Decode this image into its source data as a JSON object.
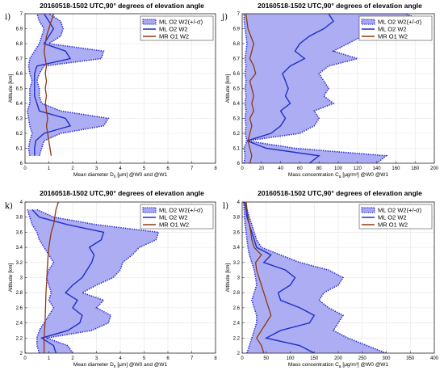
{
  "chart_data": [
    {
      "type": "area",
      "panel_label": "i)",
      "title": "20160518-1502 UTC,90° degrees of elevation angle",
      "xlabel": "Mean diameter D",
      "xlabel_sub": "n",
      "xlabel_rest": " [μm] @W0 and @W1",
      "ylabel": "Altitude [km]",
      "xlim": [
        0,
        8
      ],
      "ylim": [
        6.0,
        7.0
      ],
      "xticks": [
        0,
        1,
        2,
        3,
        4,
        5,
        6,
        7,
        8
      ],
      "yticks": [
        6,
        6.1,
        6.2,
        6.3,
        6.4,
        6.5,
        6.6,
        6.7,
        6.8,
        6.9,
        7
      ],
      "legend_position": "top-right",
      "legend": [
        "ML O2 W2(+/-σ)",
        "ML O2 W2",
        "MR O1 W2"
      ],
      "series": [
        {
          "name": "ML O2 W2(+/-σ)",
          "kind": "band",
          "y": [
            6.05,
            6.1,
            6.15,
            6.2,
            6.25,
            6.3,
            6.35,
            6.4,
            6.45,
            6.5,
            6.55,
            6.6,
            6.65,
            6.7,
            6.75,
            6.8,
            6.85,
            6.9,
            6.95,
            7.0
          ],
          "lower": [
            0.2,
            0.15,
            0.2,
            0.3,
            0.2,
            0.15,
            0.1,
            0.2,
            0.2,
            0.2,
            0.3,
            0.2,
            0.15,
            0.2,
            0.4,
            0.6,
            0.7,
            0.8,
            0.6,
            0.5
          ],
          "upper": [
            0.6,
            0.7,
            0.8,
            1.5,
            3.3,
            3.5,
            1.5,
            0.7,
            0.6,
            0.6,
            0.5,
            0.6,
            0.8,
            3.2,
            3.3,
            1.0,
            1.5,
            1.6,
            1.5,
            1.0
          ]
        },
        {
          "name": "ML O2 W2",
          "kind": "line",
          "color": "#1f2fc8",
          "y": [
            6.05,
            6.1,
            6.15,
            6.2,
            6.25,
            6.3,
            6.35,
            6.4,
            6.45,
            6.5,
            6.55,
            6.6,
            6.65,
            6.7,
            6.75,
            6.8,
            6.85,
            6.9,
            6.95,
            7.0
          ],
          "x": [
            0.4,
            0.4,
            0.45,
            0.8,
            1.9,
            1.7,
            0.6,
            0.5,
            0.4,
            0.4,
            0.4,
            0.4,
            0.5,
            1.9,
            1.7,
            0.8,
            1.0,
            1.2,
            1.0,
            0.8
          ]
        },
        {
          "name": "MR O1 W2",
          "kind": "line",
          "color": "#8b3a0f",
          "y": [
            6.05,
            6.1,
            6.15,
            6.2,
            6.25,
            6.3,
            6.35,
            6.4,
            6.45,
            6.5,
            6.55,
            6.6,
            6.65,
            6.7,
            6.75,
            6.8,
            6.85,
            6.9,
            6.95,
            7.0
          ],
          "x": [
            1.1,
            1.05,
            1.0,
            0.95,
            0.9,
            0.95,
            0.9,
            0.85,
            0.9,
            0.85,
            0.9,
            0.85,
            0.9,
            0.85,
            0.8,
            0.85,
            0.9,
            1.0,
            1.1,
            1.2
          ]
        }
      ]
    },
    {
      "type": "area",
      "panel_label": "j)",
      "title": "20160518-1502 UTC,90° degrees of elevation angle",
      "xlabel": "Mass concentration C",
      "xlabel_sub": "a",
      "xlabel_rest": " [μg/m³] @W0 @W1",
      "ylabel": "Altitude [km]",
      "xlim": [
        0,
        200
      ],
      "ylim": [
        6.0,
        7.0
      ],
      "xticks": [
        0,
        20,
        40,
        60,
        80,
        100,
        120,
        140,
        160,
        180,
        200
      ],
      "yticks": [
        6,
        6.1,
        6.2,
        6.3,
        6.4,
        6.5,
        6.6,
        6.7,
        6.8,
        6.9,
        7
      ],
      "legend_position": "top-right",
      "legend": [
        "ML O2 W2(+/-σ)",
        "ML O2 W2",
        "MR O1 W2"
      ],
      "series": [
        {
          "name": "ML O2 W2(+/-σ)",
          "kind": "band",
          "y": [
            6.0,
            6.05,
            6.1,
            6.15,
            6.2,
            6.25,
            6.3,
            6.35,
            6.4,
            6.45,
            6.5,
            6.55,
            6.6,
            6.65,
            6.7,
            6.75,
            6.8,
            6.85,
            6.9,
            6.95,
            7.0
          ],
          "lower": [
            2,
            3,
            2,
            5,
            3,
            4,
            3,
            4,
            3,
            4,
            3,
            4,
            3,
            4,
            3,
            4,
            5,
            4,
            3,
            2,
            2
          ],
          "upper": [
            140,
            150,
            55,
            5,
            60,
            75,
            80,
            75,
            95,
            85,
            90,
            85,
            80,
            90,
            120,
            95,
            110,
            125,
            150,
            190,
            170
          ]
        },
        {
          "name": "ML O2 W2",
          "kind": "line",
          "color": "#1f2fc8",
          "y": [
            6.0,
            6.05,
            6.1,
            6.15,
            6.2,
            6.25,
            6.3,
            6.35,
            6.4,
            6.45,
            6.5,
            6.55,
            6.6,
            6.65,
            6.7,
            6.75,
            6.8,
            6.85,
            6.9,
            6.95,
            7.0
          ],
          "x": [
            70,
            80,
            25,
            5,
            30,
            40,
            45,
            40,
            50,
            45,
            48,
            45,
            42,
            50,
            65,
            55,
            60,
            70,
            85,
            95,
            90
          ]
        },
        {
          "name": "MR O1 W2",
          "kind": "line",
          "color": "#8b3a0f",
          "y": [
            6.0,
            6.05,
            6.1,
            6.15,
            6.2,
            6.25,
            6.3,
            6.35,
            6.4,
            6.45,
            6.5,
            6.55,
            6.6,
            6.65,
            6.7,
            6.75,
            6.8,
            6.85,
            6.9,
            6.95,
            7.0
          ],
          "x": [
            8,
            10,
            8,
            6,
            8,
            10,
            8,
            12,
            10,
            12,
            10,
            8,
            14,
            12,
            8,
            10,
            12,
            9,
            6,
            5,
            4
          ]
        }
      ]
    },
    {
      "type": "area",
      "panel_label": "k)",
      "title": "20160518-1502 UTC,90° degrees of elevation angle",
      "xlabel": "Mean diameter D",
      "xlabel_sub": "n",
      "xlabel_rest": " [μm] @W0 and @W1",
      "ylabel": "Altitude [km]",
      "xlim": [
        0,
        8
      ],
      "ylim": [
        2.0,
        4.0
      ],
      "xticks": [
        0,
        1,
        2,
        3,
        4,
        5,
        6,
        7,
        8
      ],
      "yticks": [
        2,
        2.2,
        2.4,
        2.6,
        2.8,
        3,
        3.2,
        3.4,
        3.6,
        3.8,
        4
      ],
      "legend_position": "top-right",
      "legend": [
        "ML O2 W2(+/-σ)",
        "ML O2 W2",
        "MR O1 W2"
      ],
      "series": [
        {
          "name": "ML O2 W2(+/-σ)",
          "kind": "band",
          "y": [
            2.0,
            2.1,
            2.2,
            2.3,
            2.4,
            2.5,
            2.6,
            2.7,
            2.8,
            2.9,
            3.0,
            3.1,
            3.2,
            3.3,
            3.4,
            3.5,
            3.6,
            3.7,
            3.8,
            3.9
          ],
          "lower": [
            0.6,
            0.5,
            0.5,
            0.6,
            0.8,
            1.0,
            1.2,
            1.0,
            1.1,
            1.0,
            0.9,
            1.0,
            1.2,
            1.0,
            0.8,
            0.6,
            0.5,
            0.3,
            0.2,
            0.1
          ],
          "upper": [
            2.0,
            1.8,
            0.9,
            2.8,
            3.5,
            3.6,
            3.0,
            3.3,
            2.4,
            3.0,
            3.7,
            4.0,
            4.1,
            4.5,
            4.8,
            5.5,
            5.6,
            3.0,
            1.2,
            0.5
          ]
        },
        {
          "name": "ML O2 W2",
          "kind": "line",
          "color": "#1f2fc8",
          "y": [
            2.0,
            2.1,
            2.2,
            2.3,
            2.4,
            2.5,
            2.6,
            2.7,
            2.8,
            2.9,
            3.0,
            3.1,
            3.2,
            3.3,
            3.4,
            3.5,
            3.6,
            3.7,
            3.8,
            3.9
          ],
          "x": [
            1.3,
            1.2,
            0.7,
            1.8,
            2.3,
            2.4,
            2.0,
            2.2,
            1.7,
            2.0,
            2.4,
            2.6,
            2.8,
            2.9,
            2.7,
            3.2,
            3.3,
            1.8,
            0.6,
            0.3
          ]
        },
        {
          "name": "MR O1 W2",
          "kind": "line",
          "color": "#8b3a0f",
          "y": [
            2.0,
            2.1,
            2.2,
            2.3,
            2.4,
            2.5,
            2.6,
            2.7,
            2.8,
            2.9,
            3.0,
            3.1,
            3.2,
            3.3,
            3.4,
            3.5,
            3.6,
            3.7,
            3.8,
            3.9,
            4.0
          ],
          "x": [
            0.8,
            0.8,
            0.8,
            0.82,
            0.84,
            0.85,
            0.86,
            0.87,
            0.88,
            0.9,
            0.92,
            0.93,
            0.95,
            0.97,
            1.0,
            1.05,
            1.1,
            1.2,
            1.25,
            1.3,
            1.4
          ]
        }
      ]
    },
    {
      "type": "area",
      "panel_label": "l)",
      "title": "20160518-1502 UTC,90° degrees of elevation angle",
      "xlabel": "Mass concentration C",
      "xlabel_sub": "a",
      "xlabel_rest": " [μg/m³] @W0 @W1",
      "ylabel": "Altitude [km]",
      "xlim": [
        0,
        400
      ],
      "ylim": [
        2.0,
        4.0
      ],
      "xticks": [
        0,
        50,
        100,
        150,
        200,
        250,
        300,
        350,
        400
      ],
      "yticks": [
        2,
        2.2,
        2.4,
        2.6,
        2.8,
        3,
        3.2,
        3.4,
        3.6,
        3.8,
        4
      ],
      "legend_position": "top-right",
      "legend": [
        "ML O2 W2(+/-σ)",
        "ML O2 W2",
        "MR O1 W2"
      ],
      "series": [
        {
          "name": "ML O2 W2(+/-σ)",
          "kind": "band",
          "y": [
            2.0,
            2.1,
            2.2,
            2.3,
            2.4,
            2.5,
            2.6,
            2.7,
            2.8,
            2.9,
            3.0,
            3.1,
            3.2,
            3.3,
            3.4,
            3.5,
            3.6,
            3.7,
            3.8,
            3.9,
            4.0
          ],
          "lower": [
            10,
            15,
            20,
            25,
            30,
            30,
            25,
            20,
            25,
            30,
            28,
            25,
            20,
            15,
            12,
            10,
            8,
            6,
            5,
            4,
            3
          ],
          "upper": [
            300,
            260,
            220,
            190,
            200,
            210,
            180,
            160,
            170,
            200,
            210,
            180,
            120,
            80,
            40,
            30,
            25,
            20,
            15,
            10,
            8
          ]
        },
        {
          "name": "ML O2 W2",
          "kind": "line",
          "color": "#1f2fc8",
          "y": [
            2.0,
            2.1,
            2.2,
            2.3,
            2.4,
            2.5,
            2.6,
            2.7,
            2.8,
            2.9,
            3.0,
            3.1,
            3.2,
            3.3,
            3.4,
            3.5,
            3.6,
            3.7,
            3.8,
            3.9,
            4.0
          ],
          "x": [
            150,
            120,
            50,
            80,
            140,
            150,
            120,
            80,
            75,
            100,
            110,
            90,
            45,
            60,
            30,
            25,
            20,
            15,
            10,
            8,
            5
          ]
        },
        {
          "name": "MR O1 W2",
          "kind": "line",
          "color": "#8b3a0f",
          "y": [
            2.0,
            2.1,
            2.2,
            2.3,
            2.4,
            2.5,
            2.6,
            2.7,
            2.8,
            2.9,
            3.0,
            3.1,
            3.2,
            3.3,
            3.4,
            3.5,
            3.6,
            3.7,
            3.8,
            3.9,
            4.0
          ],
          "x": [
            45,
            40,
            30,
            40,
            50,
            60,
            55,
            50,
            45,
            40,
            35,
            30,
            28,
            40,
            25,
            20,
            18,
            15,
            12,
            10,
            8
          ]
        }
      ]
    }
  ]
}
